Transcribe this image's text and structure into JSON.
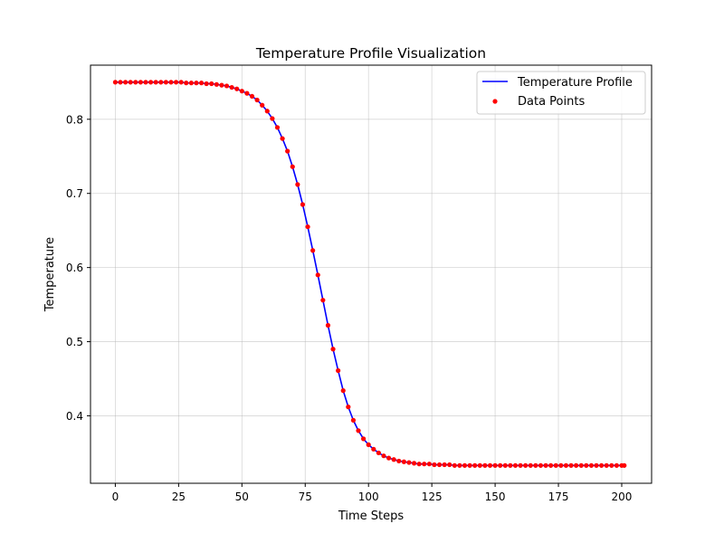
{
  "chart_data": {
    "type": "line",
    "title": "Temperature Profile Visualization",
    "xlabel": "Time Steps",
    "ylabel": "Temperature",
    "xlim": [
      -9.8,
      211.8
    ],
    "ylim": [
      0.309,
      0.873
    ],
    "xticks": [
      0,
      25,
      50,
      75,
      100,
      125,
      150,
      175,
      200
    ],
    "yticks": [
      0.4,
      0.5,
      0.6,
      0.7,
      0.8
    ],
    "ytick_labels": [
      "0.4",
      "0.5",
      "0.6",
      "0.7",
      "0.8"
    ],
    "grid": true,
    "legend": {
      "placement": "top-right"
    },
    "series": [
      {
        "name": "Temperature Profile",
        "kind": "line",
        "color": "#0000ff"
      },
      {
        "name": "Data Points",
        "kind": "scatter",
        "color": "#ff0000"
      }
    ],
    "x": [
      0,
      2,
      4,
      6,
      8,
      10,
      12,
      14,
      16,
      18,
      20,
      22,
      24,
      26,
      28,
      30,
      32,
      34,
      36,
      38,
      40,
      42,
      44,
      46,
      48,
      50,
      52,
      54,
      56,
      58,
      60,
      62,
      64,
      66,
      68,
      70,
      72,
      74,
      76,
      78,
      80,
      82,
      84,
      86,
      88,
      90,
      92,
      94,
      96,
      98,
      100,
      102,
      104,
      106,
      108,
      110,
      112,
      114,
      116,
      118,
      120,
      122,
      124,
      126,
      128,
      130,
      132,
      134,
      136,
      138,
      140,
      142,
      144,
      146,
      148,
      150,
      152,
      154,
      156,
      158,
      160,
      162,
      164,
      166,
      168,
      170,
      172,
      174,
      176,
      178,
      180,
      182,
      184,
      186,
      188,
      190,
      192,
      194,
      196,
      198,
      200,
      201
    ],
    "y": [
      0.85,
      0.85,
      0.85,
      0.85,
      0.85,
      0.85,
      0.85,
      0.85,
      0.85,
      0.85,
      0.85,
      0.85,
      0.85,
      0.85,
      0.849,
      0.849,
      0.849,
      0.849,
      0.848,
      0.848,
      0.847,
      0.846,
      0.845,
      0.843,
      0.841,
      0.838,
      0.835,
      0.831,
      0.826,
      0.819,
      0.811,
      0.801,
      0.789,
      0.774,
      0.757,
      0.736,
      0.712,
      0.685,
      0.655,
      0.623,
      0.59,
      0.556,
      0.522,
      0.49,
      0.461,
      0.434,
      0.412,
      0.394,
      0.38,
      0.369,
      0.361,
      0.355,
      0.35,
      0.346,
      0.343,
      0.341,
      0.339,
      0.338,
      0.337,
      0.336,
      0.335,
      0.335,
      0.335,
      0.334,
      0.334,
      0.334,
      0.334,
      0.333,
      0.333,
      0.333,
      0.333,
      0.333,
      0.333,
      0.333,
      0.333,
      0.333,
      0.333,
      0.333,
      0.333,
      0.333,
      0.333,
      0.333,
      0.333,
      0.333,
      0.333,
      0.333,
      0.333,
      0.333,
      0.333,
      0.333,
      0.333,
      0.333,
      0.333,
      0.333,
      0.333,
      0.333,
      0.333,
      0.333,
      0.333,
      0.333,
      0.333,
      0.333
    ]
  }
}
